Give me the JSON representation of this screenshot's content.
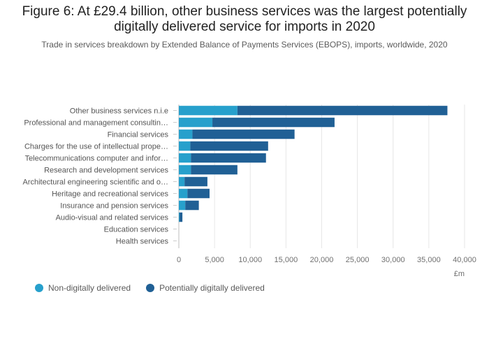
{
  "header": {
    "title": "Figure 6: At £29.4 billion, other business services was the largest potentially digitally delivered service for imports in 2020",
    "subtitle": "Trade in services breakdown by Extended Balance of Payments Services (EBOPS), imports, worldwide, 2020"
  },
  "chart_data": {
    "type": "bar",
    "orientation": "horizontal",
    "stacked": true,
    "categories": [
      "Other business services n.i.e",
      "Professional and management consultin…",
      "Financial services",
      "Charges for the use of intellectual prope…",
      "Telecommunications computer and infor…",
      "Research and development services",
      "Architectural engineering scientific and o…",
      "Heritage and recreational services",
      "Insurance and pension services",
      "Audio-visual and related services",
      "Education services",
      "Health services"
    ],
    "series": [
      {
        "name": "Non-digitally delivered",
        "color": "#27a0cc",
        "values": [
          8200,
          4700,
          1900,
          1600,
          1700,
          1700,
          800,
          1200,
          900,
          100,
          0,
          0
        ]
      },
      {
        "name": "Potentially digitally delivered",
        "color": "#206095",
        "values": [
          29400,
          17100,
          14300,
          10900,
          10500,
          6500,
          3200,
          3100,
          1900,
          400,
          0,
          0
        ]
      }
    ],
    "xlabel": "£m",
    "xlim": [
      0,
      40000
    ],
    "xticks": [
      0,
      5000,
      10000,
      15000,
      20000,
      25000,
      30000,
      35000,
      40000
    ],
    "xtick_labels": [
      "0",
      "5,000",
      "10,000",
      "15,000",
      "20,000",
      "25,000",
      "30,000",
      "35,000",
      "40,000"
    ],
    "grid": true,
    "legend_position": "bottom-left"
  }
}
